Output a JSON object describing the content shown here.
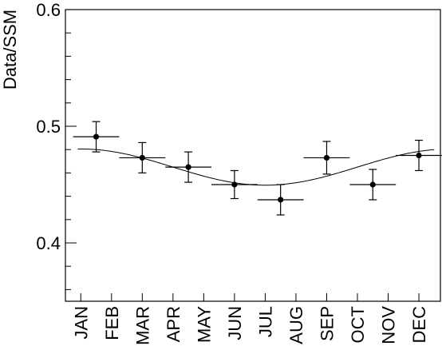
{
  "chart_data": {
    "type": "scatter",
    "title": "",
    "xlabel": "",
    "ylabel": "Data/SSM",
    "ylim": [
      0.35,
      0.6
    ],
    "yticks": [
      "0.4",
      "0.5",
      "0.6"
    ],
    "categories": [
      "JAN",
      "FEB",
      "MAR",
      "APR",
      "MAY",
      "JUN",
      "JUL",
      "AUG",
      "SEP",
      "OCT",
      "NOV",
      "DEC"
    ],
    "series": [
      {
        "points": [
          {
            "x": 0.5,
            "xerr": 0.75,
            "y": 0.491,
            "yerr": 0.013
          },
          {
            "x": 2.0,
            "xerr": 0.75,
            "y": 0.473,
            "yerr": 0.013
          },
          {
            "x": 3.5,
            "xerr": 0.75,
            "y": 0.465,
            "yerr": 0.013
          },
          {
            "x": 5.0,
            "xerr": 0.75,
            "y": 0.45,
            "yerr": 0.012
          },
          {
            "x": 6.5,
            "xerr": 0.75,
            "y": 0.437,
            "yerr": 0.013
          },
          {
            "x": 8.0,
            "xerr": 0.75,
            "y": 0.473,
            "yerr": 0.014
          },
          {
            "x": 9.5,
            "xerr": 0.75,
            "y": 0.45,
            "yerr": 0.013
          },
          {
            "x": 11.0,
            "xerr": 0.75,
            "y": 0.475,
            "yerr": 0.013
          }
        ]
      }
    ],
    "fit_curve": {
      "type": "sinusoid",
      "mean": 0.465,
      "amplitude": 0.0155,
      "period": 12,
      "phase_max_x": 0.0
    }
  }
}
